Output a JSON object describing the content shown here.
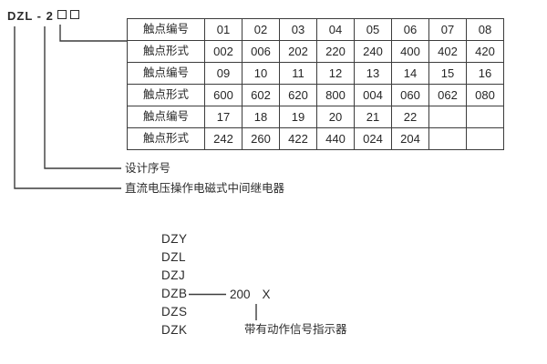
{
  "model": {
    "code": "DZL - 2"
  },
  "table": {
    "rows": [
      {
        "label": "触点编号",
        "values": [
          "01",
          "02",
          "03",
          "04",
          "05",
          "06",
          "07",
          "08"
        ]
      },
      {
        "label": "触点形式",
        "values": [
          "002",
          "006",
          "202",
          "220",
          "240",
          "400",
          "402",
          "420"
        ]
      },
      {
        "label": "触点编号",
        "values": [
          "09",
          "10",
          "11",
          "12",
          "13",
          "14",
          "15",
          "16"
        ]
      },
      {
        "label": "触点形式",
        "values": [
          "600",
          "602",
          "620",
          "800",
          "004",
          "060",
          "062",
          "080"
        ]
      },
      {
        "label": "触点编号",
        "values": [
          "17",
          "18",
          "19",
          "20",
          "21",
          "22",
          "",
          ""
        ]
      },
      {
        "label": "触点形式",
        "values": [
          "242",
          "260",
          "422",
          "440",
          "024",
          "204",
          "",
          ""
        ]
      }
    ]
  },
  "callouts": {
    "design_serial": "设计序号",
    "relay_description": "直流电压操作电磁式中间继电器"
  },
  "series": {
    "models": [
      "DZY",
      "DZL",
      "DZJ",
      "DZB",
      "DZS",
      "DZK"
    ],
    "suffix_number": "200",
    "suffix_variant": "X",
    "indicator_note": "带有动作信号指示器"
  },
  "colors": {
    "line": "#3c3c3c",
    "text": "#2b2b2b"
  }
}
